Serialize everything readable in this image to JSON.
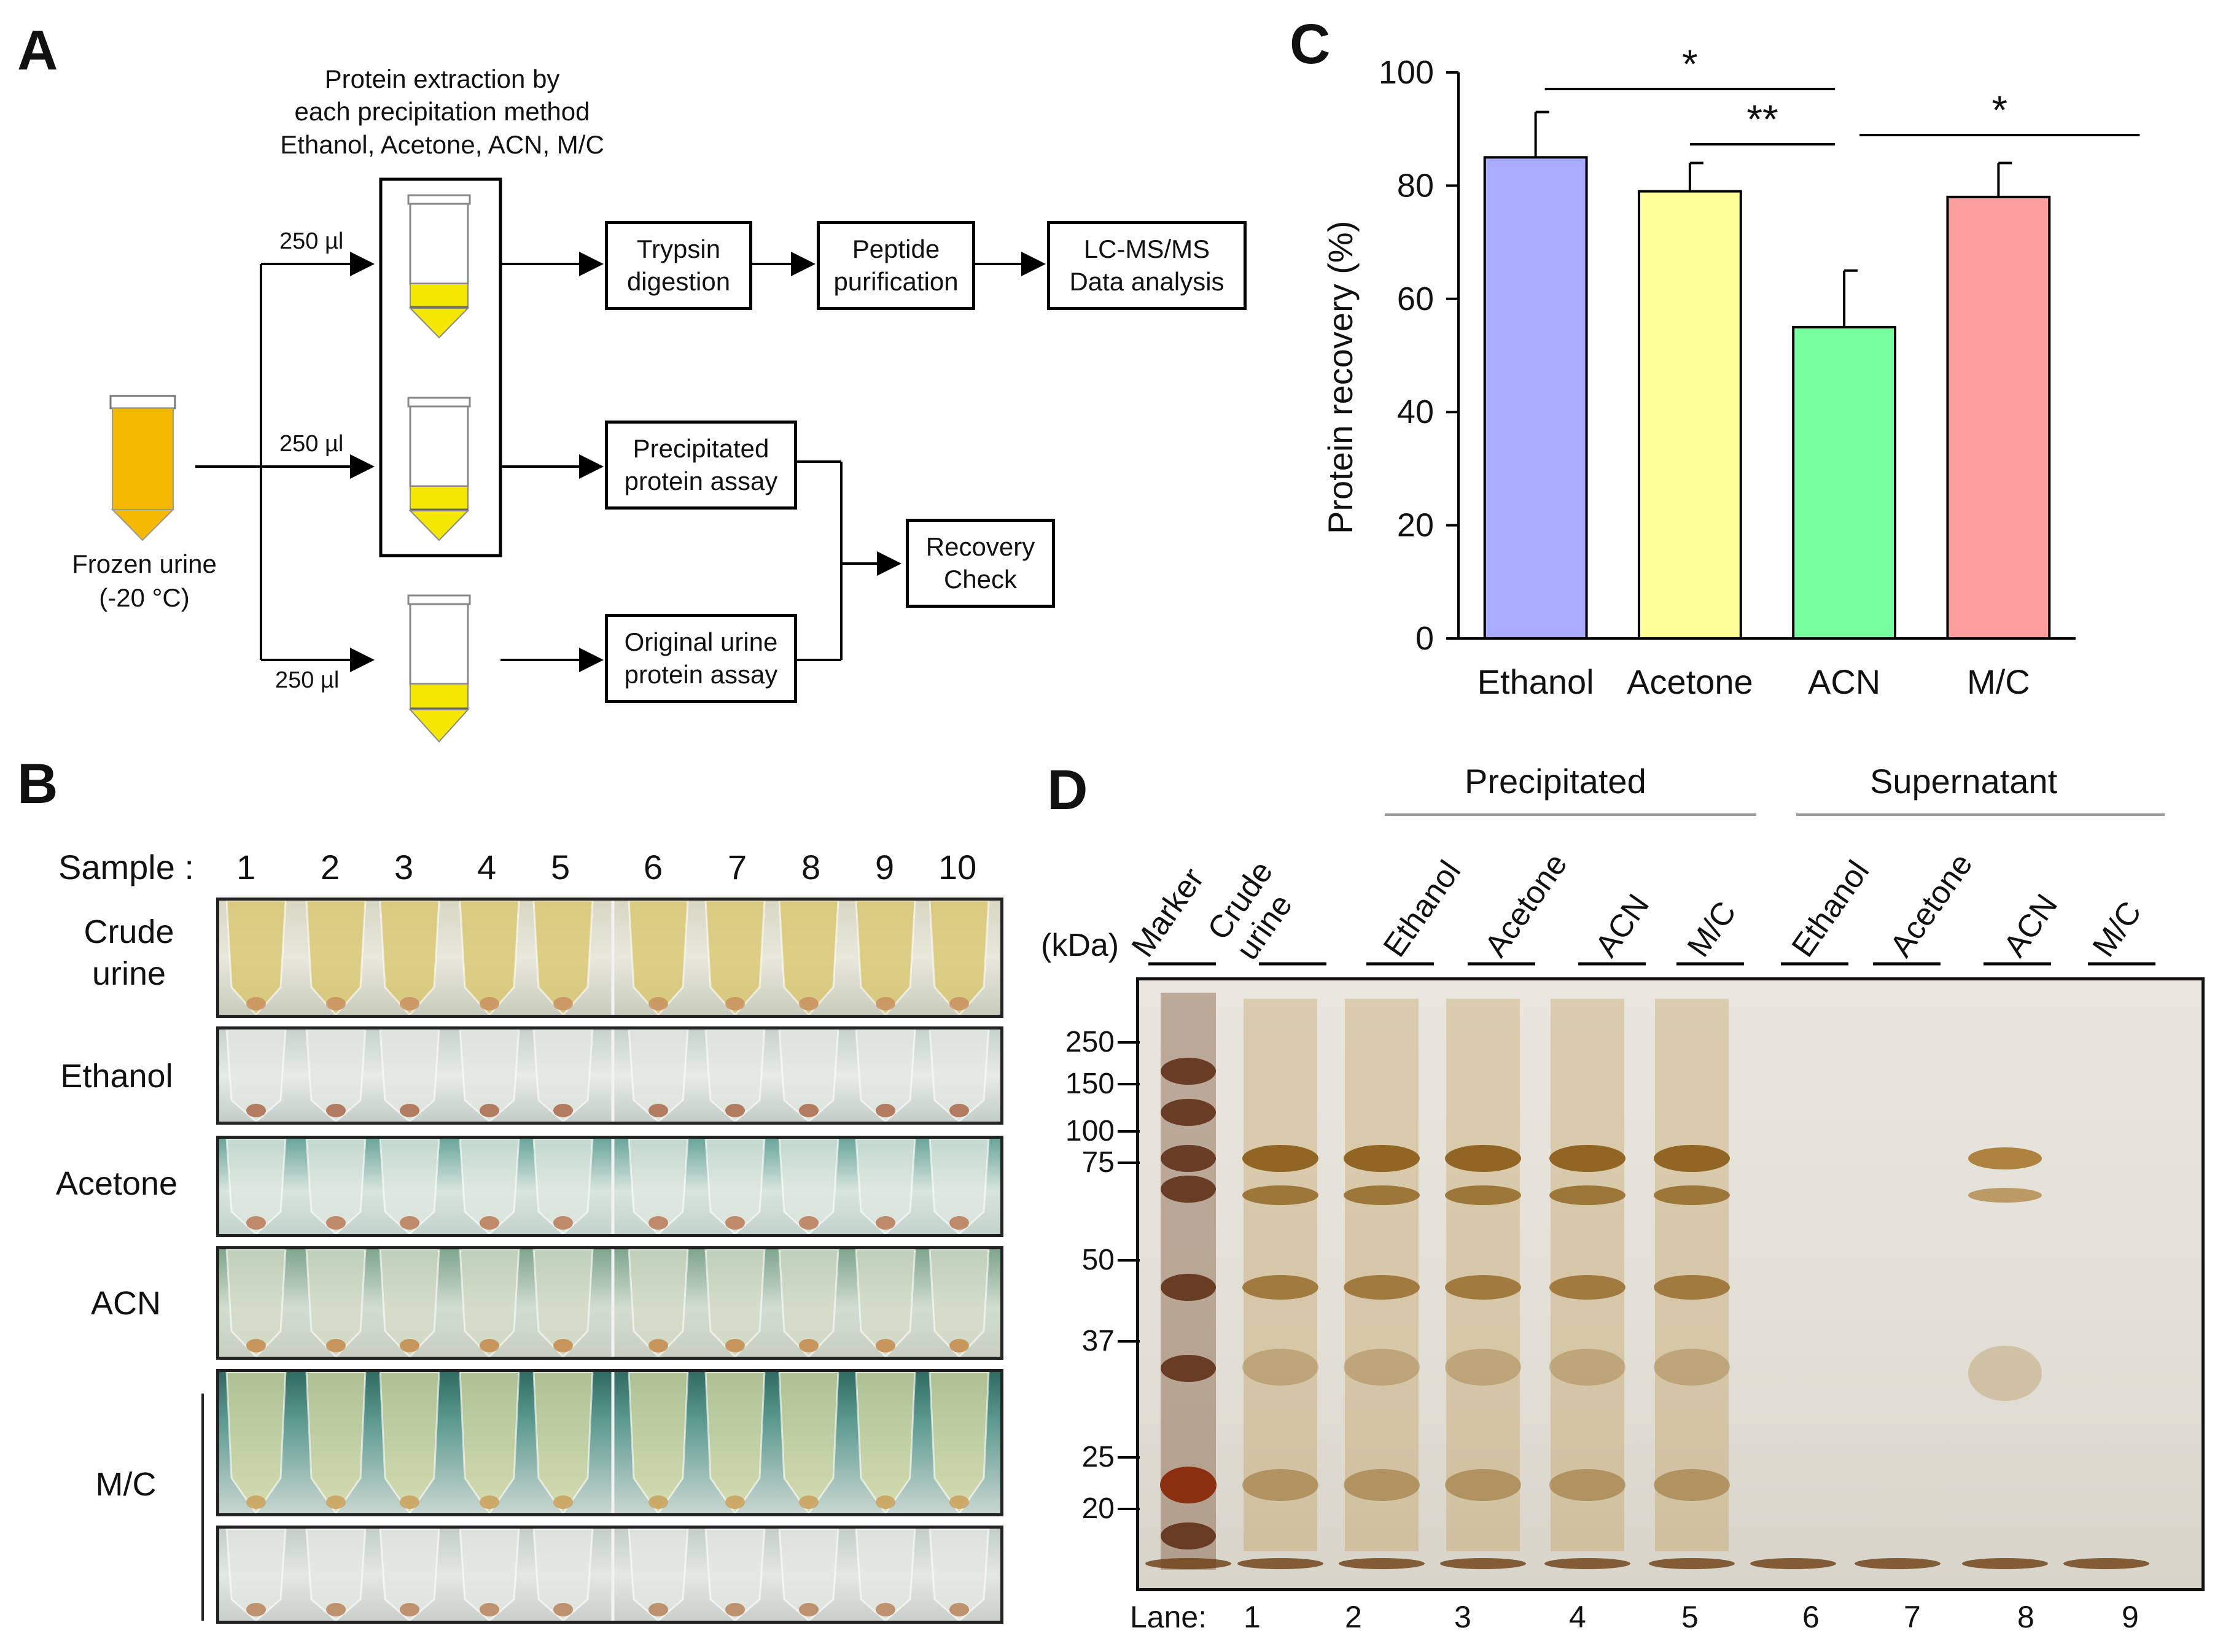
{
  "panels": {
    "a": "A",
    "b": "B",
    "c": "C",
    "d": "D"
  },
  "panel_a": {
    "top_caption_1": "Protein extraction by",
    "top_caption_2": "each precipitation method",
    "top_caption_3": "Ethanol, Acetone, ACN, M/C",
    "volume_labels": [
      "250 µl",
      "250 µl",
      "250 µl"
    ],
    "source_label_1": "Frozen urine",
    "source_label_2": "(-20 °C)",
    "boxes": {
      "trypsin": "Trypsin\ndigestion",
      "peptide": "Peptide\npurification",
      "lcms": "LC-MS/MS\nData analysis",
      "precip": "Precipitated\nprotein assay",
      "original": "Original urine\nprotein assay",
      "recovery": "Recovery\nCheck"
    },
    "colors": {
      "tube_fill_orange": "#f5b800",
      "tube_fill_yellow": "#f5e800"
    }
  },
  "panel_b": {
    "sample_label": "Sample :",
    "sample_numbers": [
      "1",
      "2",
      "3",
      "4",
      "5",
      "6",
      "7",
      "8",
      "9",
      "10"
    ],
    "rows": [
      "Crude\nurine",
      "Ethanol",
      "Acetone",
      "ACN",
      "M/C"
    ]
  },
  "chart_data": {
    "type": "bar",
    "categories": [
      "Ethanol",
      "Acetone",
      "ACN",
      "M/C"
    ],
    "values": [
      85,
      79,
      55,
      78
    ],
    "errors": [
      8,
      5,
      10,
      6
    ],
    "colors": [
      "#a9abff",
      "#ffff99",
      "#77ff9f",
      "#ff9e9e"
    ],
    "ylabel": "Protein recovery (%)",
    "ylim": [
      0,
      100
    ],
    "yticks": [
      "0",
      "20",
      "40",
      "60",
      "80",
      "100"
    ],
    "significance": [
      {
        "from": "Ethanol",
        "to": "ACN",
        "label": "*"
      },
      {
        "from": "Acetone",
        "to": "ACN",
        "label": "**"
      },
      {
        "from": "ACN",
        "to": "M/C",
        "label": "*"
      }
    ]
  },
  "panel_d": {
    "group_precipitated": "Precipitated",
    "group_supernatant": "Supernatant",
    "kda_label": "(kDa)",
    "lane_headers": [
      "Marker",
      "Crude\nurine",
      "Ethanol",
      "Acetone",
      "ACN",
      "M/C",
      "Ethanol",
      "Acetone",
      "ACN",
      "M/C"
    ],
    "markers": [
      "250",
      "150",
      "100",
      "75",
      "50",
      "37",
      "25",
      "20"
    ],
    "lane_label": "Lane:",
    "lanes": [
      "1",
      "2",
      "3",
      "4",
      "5",
      "6",
      "7",
      "8",
      "9"
    ]
  }
}
